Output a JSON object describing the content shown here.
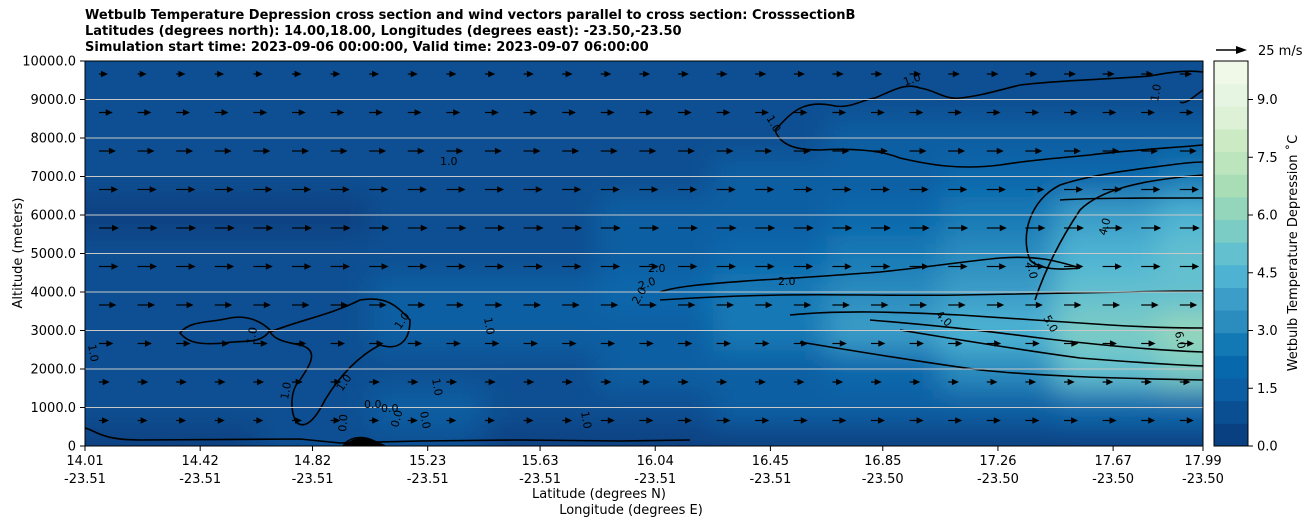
{
  "chart_data": {
    "type": "heatmap",
    "title_lines": [
      "Wetbulb Temperature Depression cross section and wind vectors parallel to cross section: CrosssectionB",
      "Latitudes (degrees north): 14.00,18.00, Longitudes (degrees east): -23.50,-23.50",
      "Simulation start time: 2023-09-06 00:00:00, Valid time: 2023-09-07 06:00:00"
    ],
    "ylabel": "Altitude (meters)",
    "xlabel_lat": "Latitude (degrees N)",
    "xlabel_lon": "Longitude (degrees E)",
    "ylim": [
      0,
      10000
    ],
    "yticks": [
      "0",
      "1000.0",
      "2000.0",
      "3000.0",
      "4000.0",
      "5000.0",
      "6000.0",
      "7000.0",
      "8000.0",
      "9000.0",
      "10000.0"
    ],
    "xlim": [
      14.01,
      17.99
    ],
    "xticks": [
      {
        "lat": "14.01",
        "lon": "-23.51"
      },
      {
        "lat": "14.42",
        "lon": "-23.51"
      },
      {
        "lat": "14.82",
        "lon": "-23.51"
      },
      {
        "lat": "15.23",
        "lon": "-23.51"
      },
      {
        "lat": "15.63",
        "lon": "-23.51"
      },
      {
        "lat": "16.04",
        "lon": "-23.51"
      },
      {
        "lat": "16.45",
        "lon": "-23.51"
      },
      {
        "lat": "16.85",
        "lon": "-23.50"
      },
      {
        "lat": "17.26",
        "lon": "-23.50"
      },
      {
        "lat": "17.67",
        "lon": "-23.50"
      },
      {
        "lat": "17.99",
        "lon": "-23.50"
      }
    ],
    "colorbar": {
      "label": "Wetbulb Temperature Depression $^\\circ$C",
      "label_display": "Wetbulb Temperature Depression ˚C",
      "range": [
        0,
        10
      ],
      "ticks": [
        "0.0",
        "1.5",
        "3.0",
        "4.5",
        "6.0",
        "7.5",
        "9.0"
      ],
      "colors": [
        "#084081",
        "#0a4f92",
        "#0b5ea3",
        "#0868ac",
        "#1379b5",
        "#2b8cbe",
        "#3b9dc8",
        "#4eb3d3",
        "#63c0cf",
        "#7bccc4",
        "#94d6bc",
        "#a8ddb5",
        "#bce5be",
        "#ccebc5",
        "#dcf1d6",
        "#e6f5e1",
        "#f0f9e8"
      ]
    },
    "wind_key": {
      "label": "25 m/s"
    },
    "contour_labels": [
      "1.0",
      "1.0",
      "1.0",
      "1.0",
      "1.0",
      "1.0",
      "1.0",
      "1.0",
      "1.0",
      "1.0",
      "1.0",
      "1.0",
      "2.0",
      "2.0",
      "2.0",
      "2.0",
      "2.0",
      "4.0",
      "4.0",
      "5.0",
      "6.0",
      "0.0",
      "0.0",
      "0.0",
      "0.0",
      "0.0"
    ],
    "depression_field": {
      "columns_lat": [
        14.01,
        14.42,
        14.82,
        15.23,
        15.63,
        16.04,
        16.45,
        16.85,
        17.26,
        17.67,
        17.99
      ],
      "rows_alt_m": [
        0,
        1000,
        2000,
        3000,
        4000,
        5000,
        6000,
        7000,
        8000,
        9000,
        10000
      ],
      "values": [
        [
          0.3,
          0.5,
          0.6,
          0.6,
          0.5,
          0.5,
          0.5,
          0.5,
          0.5,
          0.5,
          0.5
        ],
        [
          0.6,
          0.8,
          1.0,
          1.2,
          1.0,
          1.0,
          1.2,
          1.4,
          1.6,
          1.8,
          1.9
        ],
        [
          0.8,
          0.9,
          1.1,
          1.1,
          1.0,
          1.2,
          1.6,
          2.2,
          3.2,
          4.8,
          5.5
        ],
        [
          0.9,
          1.1,
          1.1,
          1.2,
          1.3,
          1.6,
          2.8,
          3.6,
          4.6,
          5.8,
          6.3
        ],
        [
          0.7,
          0.7,
          0.8,
          1.2,
          1.3,
          1.8,
          2.6,
          3.0,
          4.0,
          4.8,
          5.0
        ],
        [
          0.6,
          0.6,
          0.7,
          0.8,
          1.1,
          1.4,
          1.8,
          2.4,
          3.4,
          4.6,
          5.2
        ],
        [
          0.5,
          0.5,
          0.5,
          0.7,
          0.9,
          1.2,
          1.5,
          2.0,
          2.6,
          3.6,
          4.2
        ],
        [
          0.7,
          0.8,
          1.0,
          1.0,
          0.8,
          0.9,
          1.2,
          1.6,
          2.0,
          2.0,
          2.4
        ],
        [
          0.7,
          0.8,
          0.9,
          0.8,
          0.8,
          0.8,
          1.0,
          1.3,
          1.4,
          1.3,
          1.2
        ],
        [
          0.6,
          0.7,
          0.8,
          0.8,
          0.7,
          0.8,
          0.9,
          1.1,
          1.1,
          1.0,
          1.1
        ],
        [
          0.6,
          0.6,
          0.6,
          0.6,
          0.6,
          0.7,
          0.8,
          0.9,
          0.9,
          0.9,
          0.9
        ]
      ]
    }
  }
}
